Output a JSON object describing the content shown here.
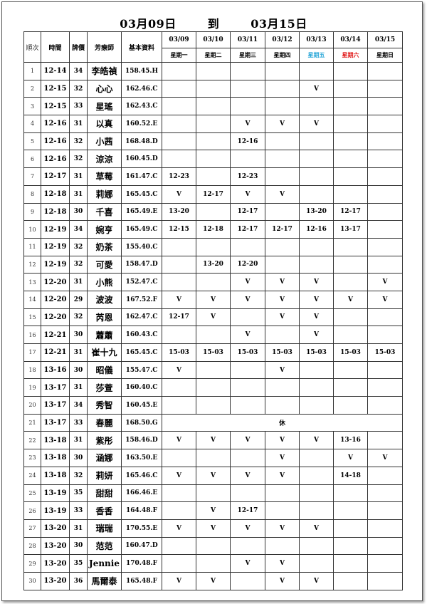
{
  "title": {
    "start": "03月09日",
    "to": "到",
    "end": "03月15日"
  },
  "headers": {
    "index": "順次",
    "time": "時間",
    "price": "牌價",
    "name": "芳療師",
    "info": "基本資料"
  },
  "dates": [
    "03/09",
    "03/10",
    "03/11",
    "03/12",
    "03/13",
    "03/14",
    "03/15"
  ],
  "weekdays": [
    "星期一",
    "星期二",
    "星期三",
    "星期四",
    "星期五",
    "星期六",
    "星期日"
  ],
  "rows": [
    {
      "index": 1,
      "time": "12-14",
      "price": 34,
      "name": "李皓禎",
      "info": "158.45.H",
      "schedule": [
        null,
        null,
        null,
        null,
        null,
        null,
        null
      ]
    },
    {
      "index": 2,
      "time": "12-15",
      "price": 32,
      "name": "心心",
      "info": "162.46.C",
      "schedule": [
        null,
        null,
        null,
        null,
        "V",
        null,
        null
      ]
    },
    {
      "index": 3,
      "time": "12-15",
      "price": 33,
      "name": "星瑤",
      "info": "162.43.C",
      "schedule": [
        null,
        null,
        null,
        null,
        null,
        null,
        null
      ]
    },
    {
      "index": 4,
      "time": "12-16",
      "price": 31,
      "name": "以真",
      "info": "160.52.E",
      "schedule": [
        null,
        null,
        "V",
        "V",
        "V",
        null,
        null
      ]
    },
    {
      "index": 5,
      "time": "12-16",
      "price": 32,
      "name": "小茜",
      "info": "168.48.D",
      "schedule": [
        null,
        null,
        "12-16",
        null,
        null,
        null,
        null
      ]
    },
    {
      "index": 6,
      "time": "12-16",
      "price": 32,
      "name": "涼涼",
      "info": "160.45.D",
      "schedule": [
        null,
        null,
        null,
        null,
        null,
        null,
        null
      ]
    },
    {
      "index": 7,
      "time": "12-17",
      "price": 31,
      "name": "草莓",
      "info": "161.47.C",
      "schedule": [
        "12-23",
        null,
        "12-23",
        null,
        null,
        null,
        null
      ]
    },
    {
      "index": 8,
      "time": "12-18",
      "price": 31,
      "name": "莉娜",
      "info": "165.45.C",
      "schedule": [
        "V",
        "12-17",
        "V",
        "V",
        null,
        null,
        null
      ]
    },
    {
      "index": 9,
      "time": "12-18",
      "price": 30,
      "name": "千喜",
      "info": "165.49.E",
      "schedule": [
        "13-20",
        null,
        "12-17",
        null,
        "13-20",
        "12-17",
        null
      ]
    },
    {
      "index": 10,
      "time": "12-19",
      "price": 34,
      "name": "婉亨",
      "info": "165.49.C",
      "schedule": [
        "12-15",
        "12-18",
        "12-17",
        "12-17",
        "12-16",
        "13-17",
        null
      ]
    },
    {
      "index": 11,
      "time": "12-19",
      "price": 32,
      "name": "奶茶",
      "info": "155.40.C",
      "schedule": [
        null,
        null,
        null,
        null,
        null,
        null,
        null
      ]
    },
    {
      "index": 12,
      "time": "12-19",
      "price": 32,
      "name": "可愛",
      "info": "158.47.D",
      "schedule": [
        null,
        "13-20",
        "12-20",
        null,
        null,
        null,
        null
      ]
    },
    {
      "index": 13,
      "time": "12-20",
      "price": 31,
      "name": "小熊",
      "info": "152.47.C",
      "schedule": [
        null,
        null,
        "V",
        "V",
        "V",
        null,
        "V"
      ]
    },
    {
      "index": 14,
      "time": "12-20",
      "price": 29,
      "name": "波波",
      "info": "167.52.F",
      "schedule": [
        "V",
        "V",
        "V",
        "V",
        "V",
        "V",
        "V"
      ]
    },
    {
      "index": 15,
      "time": "12-20",
      "price": 32,
      "name": "芮恩",
      "info": "162.47.C",
      "schedule": [
        "12-17",
        "V",
        null,
        "V",
        "V",
        null,
        null
      ]
    },
    {
      "index": 16,
      "time": "12-21",
      "price": 30,
      "name": "蕭蕭",
      "info": "160.43.C",
      "schedule": [
        null,
        null,
        "V",
        null,
        "V",
        null,
        null
      ]
    },
    {
      "index": 17,
      "time": "12-21",
      "price": 31,
      "name": "崔十九",
      "info": "165.45.C",
      "schedule": [
        "15-03",
        "15-03",
        "15-03",
        "15-03",
        "15-03",
        "15-03",
        "15-03"
      ]
    },
    {
      "index": 18,
      "time": "13-16",
      "price": 30,
      "name": "昭儀",
      "info": "155.47.C",
      "schedule": [
        "V",
        null,
        null,
        "V",
        null,
        null,
        null
      ]
    },
    {
      "index": 19,
      "time": "13-17",
      "price": 31,
      "name": "莎萱",
      "info": "160.40.C",
      "schedule": [
        null,
        null,
        null,
        null,
        null,
        null,
        null
      ]
    },
    {
      "index": 20,
      "time": "13-17",
      "price": 34,
      "name": "秀智",
      "info": "160.45.E",
      "schedule": [
        null,
        null,
        null,
        null,
        null,
        null,
        null
      ]
    },
    {
      "index": 21,
      "time": "13-17",
      "price": 33,
      "name": "春麗",
      "info": "168.50.G",
      "rest": "休"
    },
    {
      "index": 22,
      "time": "13-18",
      "price": 31,
      "name": "紫彤",
      "info": "158.46.D",
      "schedule": [
        "V",
        "V",
        "V",
        "V",
        "V",
        "13-16",
        null
      ]
    },
    {
      "index": 23,
      "time": "13-18",
      "price": 30,
      "name": "涵娜",
      "info": "163.50.E",
      "schedule": [
        null,
        null,
        null,
        "V",
        null,
        "V",
        "V"
      ]
    },
    {
      "index": 24,
      "time": "13-18",
      "price": 32,
      "name": "莉妍",
      "info": "165.46.C",
      "schedule": [
        "V",
        "V",
        "V",
        "V",
        null,
        "14-18",
        null
      ]
    },
    {
      "index": 25,
      "time": "13-19",
      "price": 35,
      "name": "甜甜",
      "info": "166.46.E",
      "schedule": [
        null,
        null,
        null,
        null,
        null,
        null,
        null
      ]
    },
    {
      "index": 26,
      "time": "13-19",
      "price": 33,
      "name": "香香",
      "info": "164.48.F",
      "schedule": [
        null,
        "V",
        "12-17",
        null,
        null,
        null,
        null
      ]
    },
    {
      "index": 27,
      "time": "13-20",
      "price": 31,
      "name": "瑞瑞",
      "info": "170.55.E",
      "schedule": [
        "V",
        "V",
        "V",
        "V",
        "V",
        null,
        null
      ]
    },
    {
      "index": 28,
      "time": "13-20",
      "price": 30,
      "name": "范范",
      "info": "160.47.D",
      "schedule": [
        null,
        null,
        null,
        null,
        null,
        null,
        null
      ]
    },
    {
      "index": 29,
      "time": "13-20",
      "price": 35,
      "name": "Jennie",
      "info": "170.48.F",
      "schedule": [
        null,
        null,
        "V",
        "V",
        null,
        null,
        null
      ]
    },
    {
      "index": 30,
      "time": "13-20",
      "price": 36,
      "name": "馬爾泰",
      "info": "165.48.F",
      "schedule": [
        "V",
        "V",
        null,
        "V",
        "V",
        null,
        null
      ]
    }
  ]
}
